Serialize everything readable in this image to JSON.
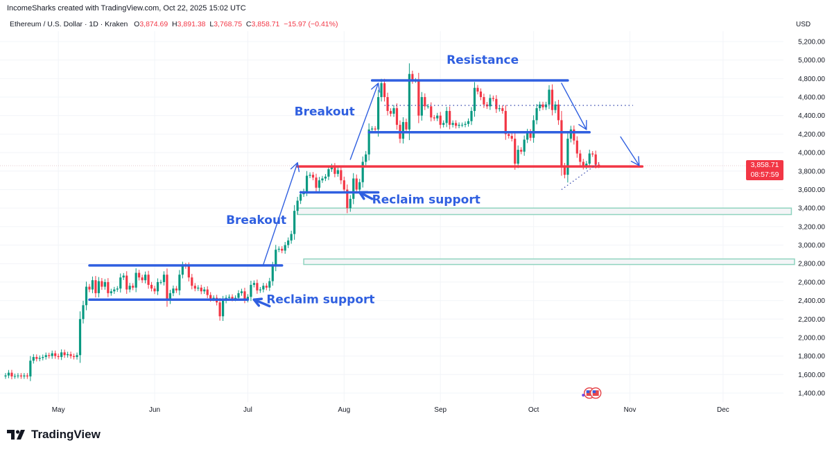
{
  "header": {
    "credit": "IncomeSharks created with TradingView.com, Oct 22, 2025 15:02 UTC",
    "symbol": "Ethereum / U.S. Dollar · 1D · Kraken",
    "o_label": "O",
    "o": "3,874.69",
    "h_label": "H",
    "h": "3,891.38",
    "l_label": "L",
    "l": "3,768.75",
    "c_label": "C",
    "c": "3,858.71",
    "change": "−15.97 (−0.41%)"
  },
  "price_axis": {
    "currency": "USD",
    "current_price": "3,858.71",
    "countdown": "08:57:59"
  },
  "footer": {
    "brand": "TradingView"
  },
  "colors": {
    "up": "#089981",
    "down": "#f23645",
    "drawing_blue": "#2f5fe0",
    "support_red": "#f23645",
    "zone_border": "#8fd3bf"
  },
  "chart_data": {
    "type": "candlestick",
    "title": "",
    "start_date": "2025-04-14",
    "interval": "1D",
    "closes": [
      1590,
      1620,
      1580,
      1585,
      1590,
      1580,
      1590,
      1580,
      1750,
      1790,
      1770,
      1780,
      1790,
      1810,
      1800,
      1830,
      1800,
      1790,
      1840,
      1810,
      1820,
      1800,
      1790,
      1810,
      2200,
      2350,
      2550,
      2520,
      2620,
      2480,
      2610,
      2550,
      2600,
      2480,
      2500,
      2520,
      2530,
      2650,
      2670,
      2520,
      2560,
      2540,
      2700,
      2650,
      2620,
      2680,
      2570,
      2530,
      2500,
      2600,
      2600,
      2680,
      2400,
      2480,
      2530,
      2510,
      2680,
      2780,
      2770,
      2650,
      2560,
      2530,
      2540,
      2500,
      2520,
      2460,
      2420,
      2430,
      2380,
      2230,
      2400,
      2430,
      2440,
      2420,
      2430,
      2480,
      2500,
      2410,
      2440,
      2570,
      2590,
      2510,
      2520,
      2560,
      2540,
      2610,
      2770,
      2950,
      2960,
      2940,
      3000,
      3050,
      3120,
      3370,
      3480,
      3550,
      3580,
      3750,
      3760,
      3730,
      3620,
      3700,
      3720,
      3740,
      3820,
      3850,
      3770,
      3810,
      3700,
      3600,
      3400,
      3500,
      3720,
      3600,
      3680,
      3900,
      3980,
      4250,
      4260,
      4250,
      4600,
      4750,
      4600,
      4450,
      4420,
      4480,
      4300,
      4150,
      4330,
      4250,
      4850,
      4780,
      4780,
      4400,
      4600,
      4500,
      4500,
      4380,
      4370,
      4400,
      4300,
      4320,
      4450,
      4300,
      4320,
      4290,
      4300,
      4300,
      4310,
      4340,
      4450,
      4700,
      4660,
      4600,
      4520,
      4500,
      4590,
      4580,
      4470,
      4480,
      4450,
      4200,
      4180,
      4150,
      3880,
      4030,
      4010,
      4140,
      4220,
      4160,
      4350,
      4480,
      4520,
      4490,
      4520,
      4680,
      4460,
      4520,
      4350,
      3850,
      3760,
      4150,
      4250,
      4130,
      3990,
      3900,
      3850,
      3880,
      3990,
      3980,
      3870,
      3858.71
    ],
    "y_ticks": [
      "5,200.00",
      "5,000.00",
      "4,800.00",
      "4,600.00",
      "4,400.00",
      "4,200.00",
      "4,000.00",
      "3,800.00",
      "3,600.00",
      "3,400.00",
      "3,200.00",
      "3,000.00",
      "2,800.00",
      "2,600.00",
      "2,400.00",
      "2,200.00",
      "2,000.00",
      "1,800.00",
      "1,600.00",
      "1,400.00"
    ],
    "x_ticks": [
      {
        "label": "May",
        "date": "2025-05-01"
      },
      {
        "label": "Jun",
        "date": "2025-06-01"
      },
      {
        "label": "Jul",
        "date": "2025-07-01"
      },
      {
        "label": "Aug",
        "date": "2025-08-01"
      },
      {
        "label": "Sep",
        "date": "2025-09-01"
      },
      {
        "label": "Oct",
        "date": "2025-10-01"
      },
      {
        "label": "Nov",
        "date": "2025-11-01"
      },
      {
        "label": "Dec",
        "date": "2025-12-01"
      }
    ],
    "ylim": [
      1300,
      5300
    ],
    "grid": true,
    "drawings": {
      "hlines": [
        {
          "name": "range-top-line",
          "color": "blue",
          "price": 2780,
          "from": "2025-05-11",
          "to": "2025-07-12"
        },
        {
          "name": "range-bottom-line",
          "color": "blue",
          "price": 2410,
          "from": "2025-05-11",
          "to": "2025-07-01"
        },
        {
          "name": "support-line-red",
          "color": "red",
          "price": 3850,
          "from": "2025-07-17",
          "to": "2025-11-05"
        },
        {
          "name": "reclaim-line",
          "color": "blue",
          "price": 3570,
          "from": "2025-07-18",
          "to": "2025-08-12"
        },
        {
          "name": "resistance-line",
          "color": "blue",
          "price": 4780,
          "from": "2025-08-10",
          "to": "2025-10-12"
        },
        {
          "name": "mid-range-line",
          "color": "blue",
          "price": 4220,
          "from": "2025-08-09",
          "to": "2025-10-19"
        },
        {
          "name": "dotted-level-line",
          "color": "dotted",
          "price": 4510,
          "from": "2025-08-14",
          "to": "2025-11-02"
        }
      ],
      "zones": [
        {
          "name": "upper-zone",
          "low": 3330,
          "high": 3400,
          "from": "2025-07-17",
          "to": "2025-12-23"
        },
        {
          "name": "lower-zone",
          "low": 2790,
          "high": 2850,
          "from": "2025-07-19",
          "to": "2025-12-24"
        }
      ],
      "arrows": [
        {
          "from": [
            "2025-07-06",
            2790
          ],
          "to": [
            "2025-07-17",
            3890
          ]
        },
        {
          "from": [
            "2025-08-03",
            3926
          ],
          "to": [
            "2025-08-12",
            4750
          ]
        },
        {
          "from": [
            "2025-10-10",
            4750
          ],
          "to": [
            "2025-10-18",
            4250
          ]
        },
        {
          "from": [
            "2025-10-29",
            4170
          ],
          "to": [
            "2025-11-04",
            3860
          ]
        }
      ],
      "reclaim_arrows": [
        {
          "from": [
            "2025-07-08",
            2340
          ],
          "to": [
            "2025-07-03",
            2410
          ]
        },
        {
          "from": [
            "2025-08-10",
            3500
          ],
          "to": [
            "2025-08-06",
            3570
          ]
        }
      ],
      "trendline": {
        "from": [
          "2025-10-10",
          3600
        ],
        "to": [
          "2025-10-22",
          3890
        ]
      },
      "labels": [
        {
          "text": "Resistance",
          "date": "2025-09-03",
          "price": 4960
        },
        {
          "text": "Breakout",
          "date": "2025-07-16",
          "price": 4400
        },
        {
          "text": "Breakout",
          "date": "2025-06-24",
          "price": 3230
        },
        {
          "text": "Reclaim support",
          "date": "2025-07-07",
          "price": 2370
        },
        {
          "text": "Reclaim support",
          "date": "2025-08-10",
          "price": 3450
        }
      ]
    },
    "events": [
      {
        "icon": "us-flag-icon",
        "date": "2025-10-19"
      },
      {
        "icon": "us-flag-icon",
        "date": "2025-10-21"
      }
    ]
  }
}
